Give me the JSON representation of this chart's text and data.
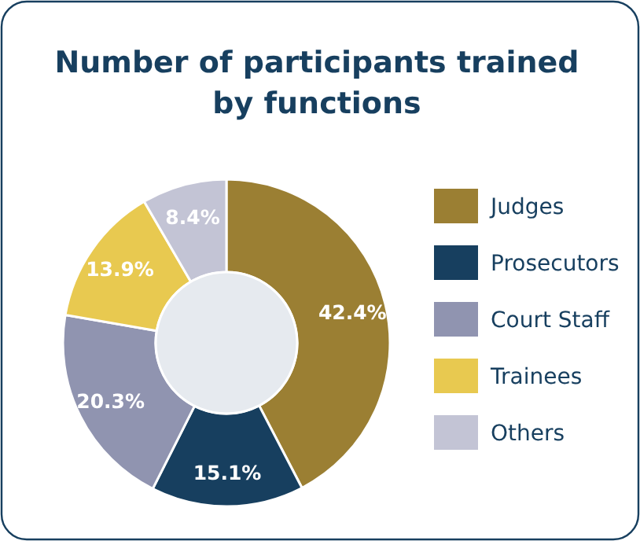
{
  "chart_data": {
    "type": "donut",
    "title": "Number of participants trained by functions",
    "categories": [
      "Judges",
      "Prosecutors",
      "Court Staff",
      "Trainees",
      "Others"
    ],
    "values": [
      42.4,
      15.1,
      20.3,
      13.9,
      8.4
    ],
    "colors": [
      "#9b7f33",
      "#173f5f",
      "#9094b0",
      "#e8c950",
      "#c3c4d5"
    ],
    "value_labels": [
      "42.4%",
      "15.1%",
      "20.3%",
      "13.9%",
      "8.4%"
    ],
    "legend": "right"
  }
}
